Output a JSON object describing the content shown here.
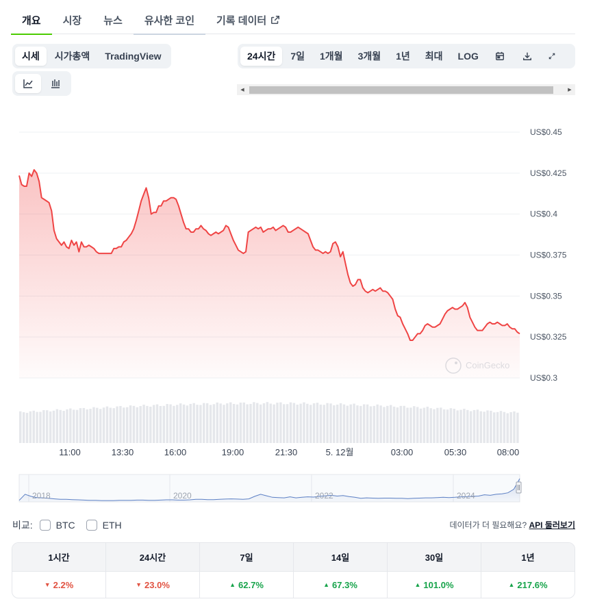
{
  "tabs": [
    {
      "label": "개요",
      "active": true
    },
    {
      "label": "시장"
    },
    {
      "label": "뉴스"
    },
    {
      "label": "유사한 코인"
    },
    {
      "label": "기록 데이터",
      "icon": "external-link-icon"
    }
  ],
  "chart_type_toggle": [
    "시세",
    "시가총액",
    "TradingView"
  ],
  "chart_style_toggle": [
    {
      "icon": "line-chart-icon",
      "active": true
    },
    {
      "icon": "candlestick-chart-icon"
    }
  ],
  "range_toggle": [
    "24시간",
    "7일",
    "1개월",
    "3개월",
    "1년",
    "최대",
    "LOG"
  ],
  "range_icons": [
    "calendar-icon",
    "download-icon",
    "expand-icon"
  ],
  "colors": {
    "accent": "#4bcc00",
    "line": "#ef4444",
    "down": "#e15241",
    "up": "#16a34a",
    "navigator_line": "#5b7fc4"
  },
  "watermark": "CoinGecko",
  "chart_data": {
    "type": "area",
    "y_unit_prefix": "US$",
    "ylim": [
      0.3,
      0.45
    ],
    "yticks": [
      "US$0.45",
      "US$0.425",
      "US$0.4",
      "US$0.375",
      "US$0.35",
      "US$0.325",
      "US$0.3"
    ],
    "xticks": [
      "11:00",
      "13:30",
      "16:00",
      "19:00",
      "21:30",
      "5. 12월",
      "03:00",
      "05:30",
      "08:00"
    ],
    "series": [
      {
        "values": [
          0.4235,
          0.418,
          0.417,
          0.417,
          0.425,
          0.423,
          0.427,
          0.425,
          0.42,
          0.41,
          0.409,
          0.408,
          0.407,
          0.402,
          0.39,
          0.385,
          0.383,
          0.381,
          0.383,
          0.38,
          0.379,
          0.384,
          0.381,
          0.383,
          0.377,
          0.383,
          0.38,
          0.38,
          0.381,
          0.38,
          0.379,
          0.377,
          0.376,
          0.376,
          0.376,
          0.376,
          0.376,
          0.376,
          0.379,
          0.379,
          0.38,
          0.38,
          0.383,
          0.384,
          0.386,
          0.388,
          0.391,
          0.396,
          0.402,
          0.408,
          0.412,
          0.416,
          0.41,
          0.4,
          0.401,
          0.401,
          0.405,
          0.405,
          0.408,
          0.408,
          0.409,
          0.41,
          0.41,
          0.409,
          0.405,
          0.4,
          0.395,
          0.391,
          0.391,
          0.389,
          0.389,
          0.391,
          0.391,
          0.393,
          0.391,
          0.39,
          0.388,
          0.387,
          0.388,
          0.389,
          0.388,
          0.389,
          0.39,
          0.393,
          0.392,
          0.388,
          0.384,
          0.381,
          0.378,
          0.377,
          0.376,
          0.377,
          0.389,
          0.39,
          0.391,
          0.392,
          0.391,
          0.392,
          0.389,
          0.39,
          0.391,
          0.391,
          0.392,
          0.39,
          0.391,
          0.392,
          0.393,
          0.392,
          0.389,
          0.389,
          0.39,
          0.391,
          0.392,
          0.391,
          0.39,
          0.389,
          0.388,
          0.384,
          0.38,
          0.378,
          0.378,
          0.377,
          0.376,
          0.377,
          0.376,
          0.377,
          0.382,
          0.383,
          0.38,
          0.374,
          0.377,
          0.37,
          0.363,
          0.358,
          0.356,
          0.357,
          0.36,
          0.36,
          0.355,
          0.353,
          0.352,
          0.353,
          0.354,
          0.353,
          0.354,
          0.355,
          0.353,
          0.353,
          0.352,
          0.35,
          0.348,
          0.342,
          0.338,
          0.337,
          0.333,
          0.33,
          0.327,
          0.323,
          0.323,
          0.325,
          0.327,
          0.327,
          0.329,
          0.332,
          0.333,
          0.332,
          0.331,
          0.331,
          0.332,
          0.333,
          0.336,
          0.339,
          0.341,
          0.342,
          0.343,
          0.342,
          0.342,
          0.343,
          0.344,
          0.346,
          0.343,
          0.337,
          0.334,
          0.331,
          0.329,
          0.329,
          0.329,
          0.331,
          0.333,
          0.334,
          0.333,
          0.333,
          0.334,
          0.333,
          0.332,
          0.332,
          0.333,
          0.331,
          0.33,
          0.33,
          0.328,
          0.327
        ]
      }
    ],
    "volume_range": [
      0.7,
      0.92
    ],
    "navigator": {
      "xticks": [
        "2018",
        "2020",
        "2022",
        "2024"
      ],
      "values": [
        0.06,
        0.3,
        0.22,
        0.17,
        0.16,
        0.14,
        0.12,
        0.1,
        0.1,
        0.09,
        0.08,
        0.07,
        0.06,
        0.06,
        0.05,
        0.05,
        0.05,
        0.06,
        0.06,
        0.06,
        0.07,
        0.07,
        0.06,
        0.06,
        0.07,
        0.08,
        0.08,
        0.07,
        0.07,
        0.08,
        0.1,
        0.1,
        0.09,
        0.09,
        0.1,
        0.11,
        0.12,
        0.11,
        0.1,
        0.12,
        0.22,
        0.3,
        0.24,
        0.18,
        0.17,
        0.16,
        0.2,
        0.16,
        0.18,
        0.2,
        0.19,
        0.22,
        0.24,
        0.26,
        0.23,
        0.25,
        0.21,
        0.18,
        0.14,
        0.16,
        0.15,
        0.14,
        0.15,
        0.15,
        0.14,
        0.14,
        0.13,
        0.14,
        0.15,
        0.16,
        0.16,
        0.17,
        0.18,
        0.17,
        0.18,
        0.2,
        0.21,
        0.22,
        0.23,
        0.28,
        0.26,
        0.3,
        0.32,
        0.36,
        0.5,
        0.92
      ]
    }
  },
  "compare": {
    "label": "비교:",
    "options": [
      "BTC",
      "ETH"
    ]
  },
  "api_note": {
    "text": "데이터가 더 필요해요?",
    "link": "API 둘러보기"
  },
  "performance": [
    {
      "period": "1시간",
      "change": "2.2%",
      "direction": "down"
    },
    {
      "period": "24시간",
      "change": "23.0%",
      "direction": "down"
    },
    {
      "period": "7일",
      "change": "62.7%",
      "direction": "up"
    },
    {
      "period": "14일",
      "change": "67.3%",
      "direction": "up"
    },
    {
      "period": "30일",
      "change": "101.0%",
      "direction": "up"
    },
    {
      "period": "1년",
      "change": "217.6%",
      "direction": "up"
    }
  ]
}
